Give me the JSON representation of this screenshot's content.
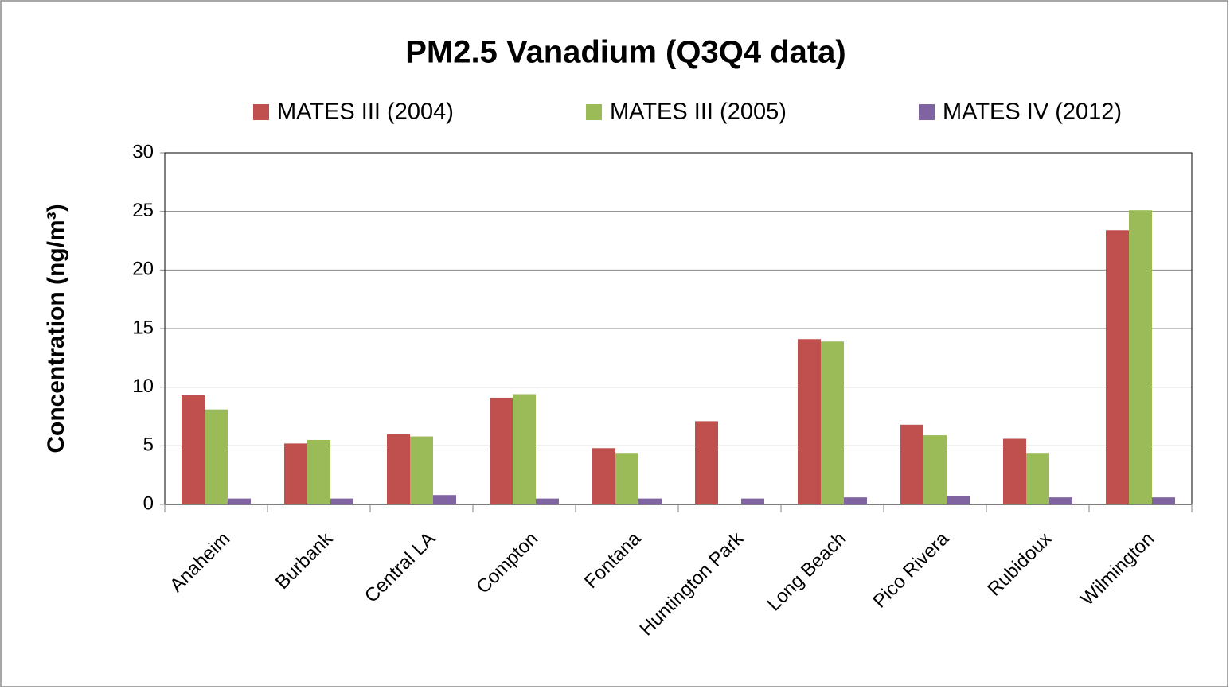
{
  "chart_data": {
    "type": "bar",
    "title": "PM2.5 Vanadium (Q3Q4 data)",
    "y_label": "Concentration (ng/m³)",
    "categories": [
      "Anaheim",
      "Burbank",
      "Central LA",
      "Compton",
      "Fontana",
      "Huntington Park",
      "Long Beach",
      "Pico Rivera",
      "Rubidoux",
      "Wilmington"
    ],
    "series": [
      {
        "name": "MATES III (2004)",
        "color": "#c0504d",
        "values": [
          9.3,
          5.2,
          6.0,
          9.1,
          4.8,
          7.1,
          14.1,
          6.8,
          5.6,
          23.4
        ]
      },
      {
        "name": "MATES III (2005)",
        "color": "#9bbb59",
        "values": [
          8.1,
          5.5,
          5.8,
          9.4,
          4.4,
          null,
          13.9,
          5.9,
          4.4,
          25.1
        ]
      },
      {
        "name": "MATES IV (2012)",
        "color": "#8064a2",
        "values": [
          0.5,
          0.5,
          0.8,
          0.5,
          0.5,
          0.5,
          0.6,
          0.7,
          0.6,
          0.6
        ]
      }
    ],
    "ylim": [
      0,
      30
    ],
    "yticks": [
      0,
      5,
      10,
      15,
      20,
      25,
      30
    ],
    "grid": true,
    "legend": "top"
  }
}
